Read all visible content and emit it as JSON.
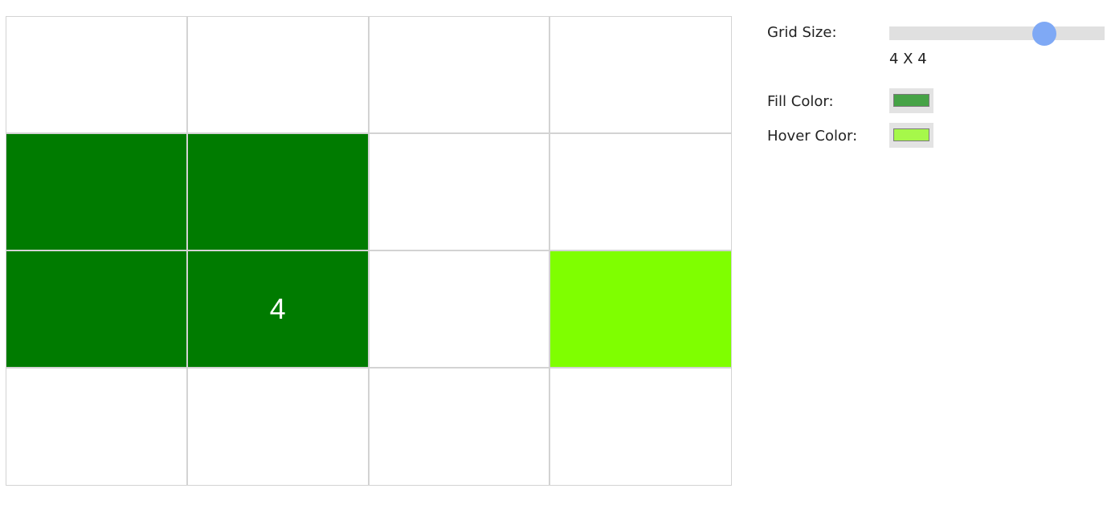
{
  "grid": {
    "rows": 4,
    "cols": 4,
    "fill_color": "#007b00",
    "hover_color": "#7fff00",
    "cells": [
      {
        "state": "empty",
        "text": ""
      },
      {
        "state": "empty",
        "text": ""
      },
      {
        "state": "empty",
        "text": ""
      },
      {
        "state": "empty",
        "text": ""
      },
      {
        "state": "filled",
        "text": ""
      },
      {
        "state": "filled",
        "text": ""
      },
      {
        "state": "empty",
        "text": ""
      },
      {
        "state": "empty",
        "text": ""
      },
      {
        "state": "filled",
        "text": ""
      },
      {
        "state": "filled",
        "text": "4"
      },
      {
        "state": "empty",
        "text": ""
      },
      {
        "state": "hover",
        "text": ""
      },
      {
        "state": "empty",
        "text": ""
      },
      {
        "state": "empty",
        "text": ""
      },
      {
        "state": "empty",
        "text": ""
      },
      {
        "state": "empty",
        "text": ""
      }
    ]
  },
  "controls": {
    "grid_size_label": "Grid Size:",
    "grid_size_value": "4 X 4",
    "slider_level": 0.72,
    "fill_color_label": "Fill Color:",
    "fill_color_swatch": "#46a346",
    "hover_color_label": "Hover Color:",
    "hover_color_swatch": "#a6f84a"
  }
}
